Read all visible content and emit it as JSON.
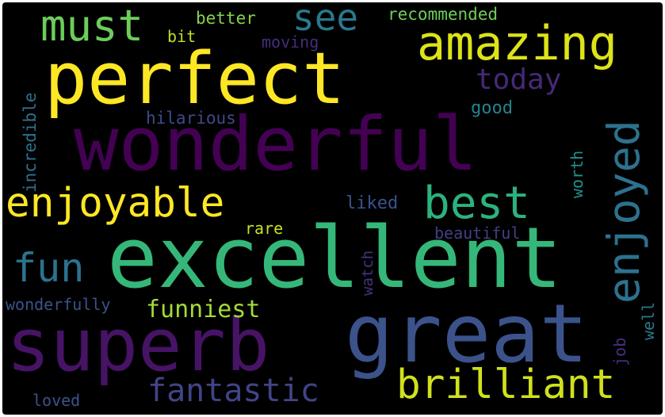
{
  "word_cloud": {
    "background": "#000000",
    "words": [
      {
        "text": "wonderful",
        "color": "#440154"
      },
      {
        "text": "excellent",
        "color": "#35b779"
      },
      {
        "text": "great",
        "color": "#3b528b"
      },
      {
        "text": "perfect",
        "color": "#fde725"
      },
      {
        "text": "superb",
        "color": "#471365"
      },
      {
        "text": "amazing",
        "color": "#dde318"
      },
      {
        "text": "brilliant",
        "color": "#d0e11c"
      },
      {
        "text": "enjoyable",
        "color": "#fde725"
      },
      {
        "text": "best",
        "color": "#2db27d"
      },
      {
        "text": "enjoyed",
        "color": "#2c728e"
      },
      {
        "text": "must",
        "color": "#6ccd5a"
      },
      {
        "text": "see",
        "color": "#2a788e"
      },
      {
        "text": "fun",
        "color": "#2c728e"
      },
      {
        "text": "fantastic",
        "color": "#414487"
      },
      {
        "text": "today",
        "color": "#482878"
      },
      {
        "text": "funniest",
        "color": "#a2da37"
      },
      {
        "text": "hilarious",
        "color": "#3e4989"
      },
      {
        "text": "recommended",
        "color": "#6ece58"
      },
      {
        "text": "better",
        "color": "#86d549"
      },
      {
        "text": "bit",
        "color": "#bddf26"
      },
      {
        "text": "moving",
        "color": "#472d7b"
      },
      {
        "text": "good",
        "color": "#26828e"
      },
      {
        "text": "incredible",
        "color": "#2c728e"
      },
      {
        "text": "liked",
        "color": "#3b528b"
      },
      {
        "text": "worth",
        "color": "#21908d"
      },
      {
        "text": "rare",
        "color": "#c8e020"
      },
      {
        "text": "beautiful",
        "color": "#433e85"
      },
      {
        "text": "watch",
        "color": "#46327e"
      },
      {
        "text": "wonderfully",
        "color": "#3b528b"
      },
      {
        "text": "job",
        "color": "#472f7d"
      },
      {
        "text": "well",
        "color": "#2a788e"
      },
      {
        "text": "loved",
        "color": "#3b528b"
      }
    ]
  }
}
